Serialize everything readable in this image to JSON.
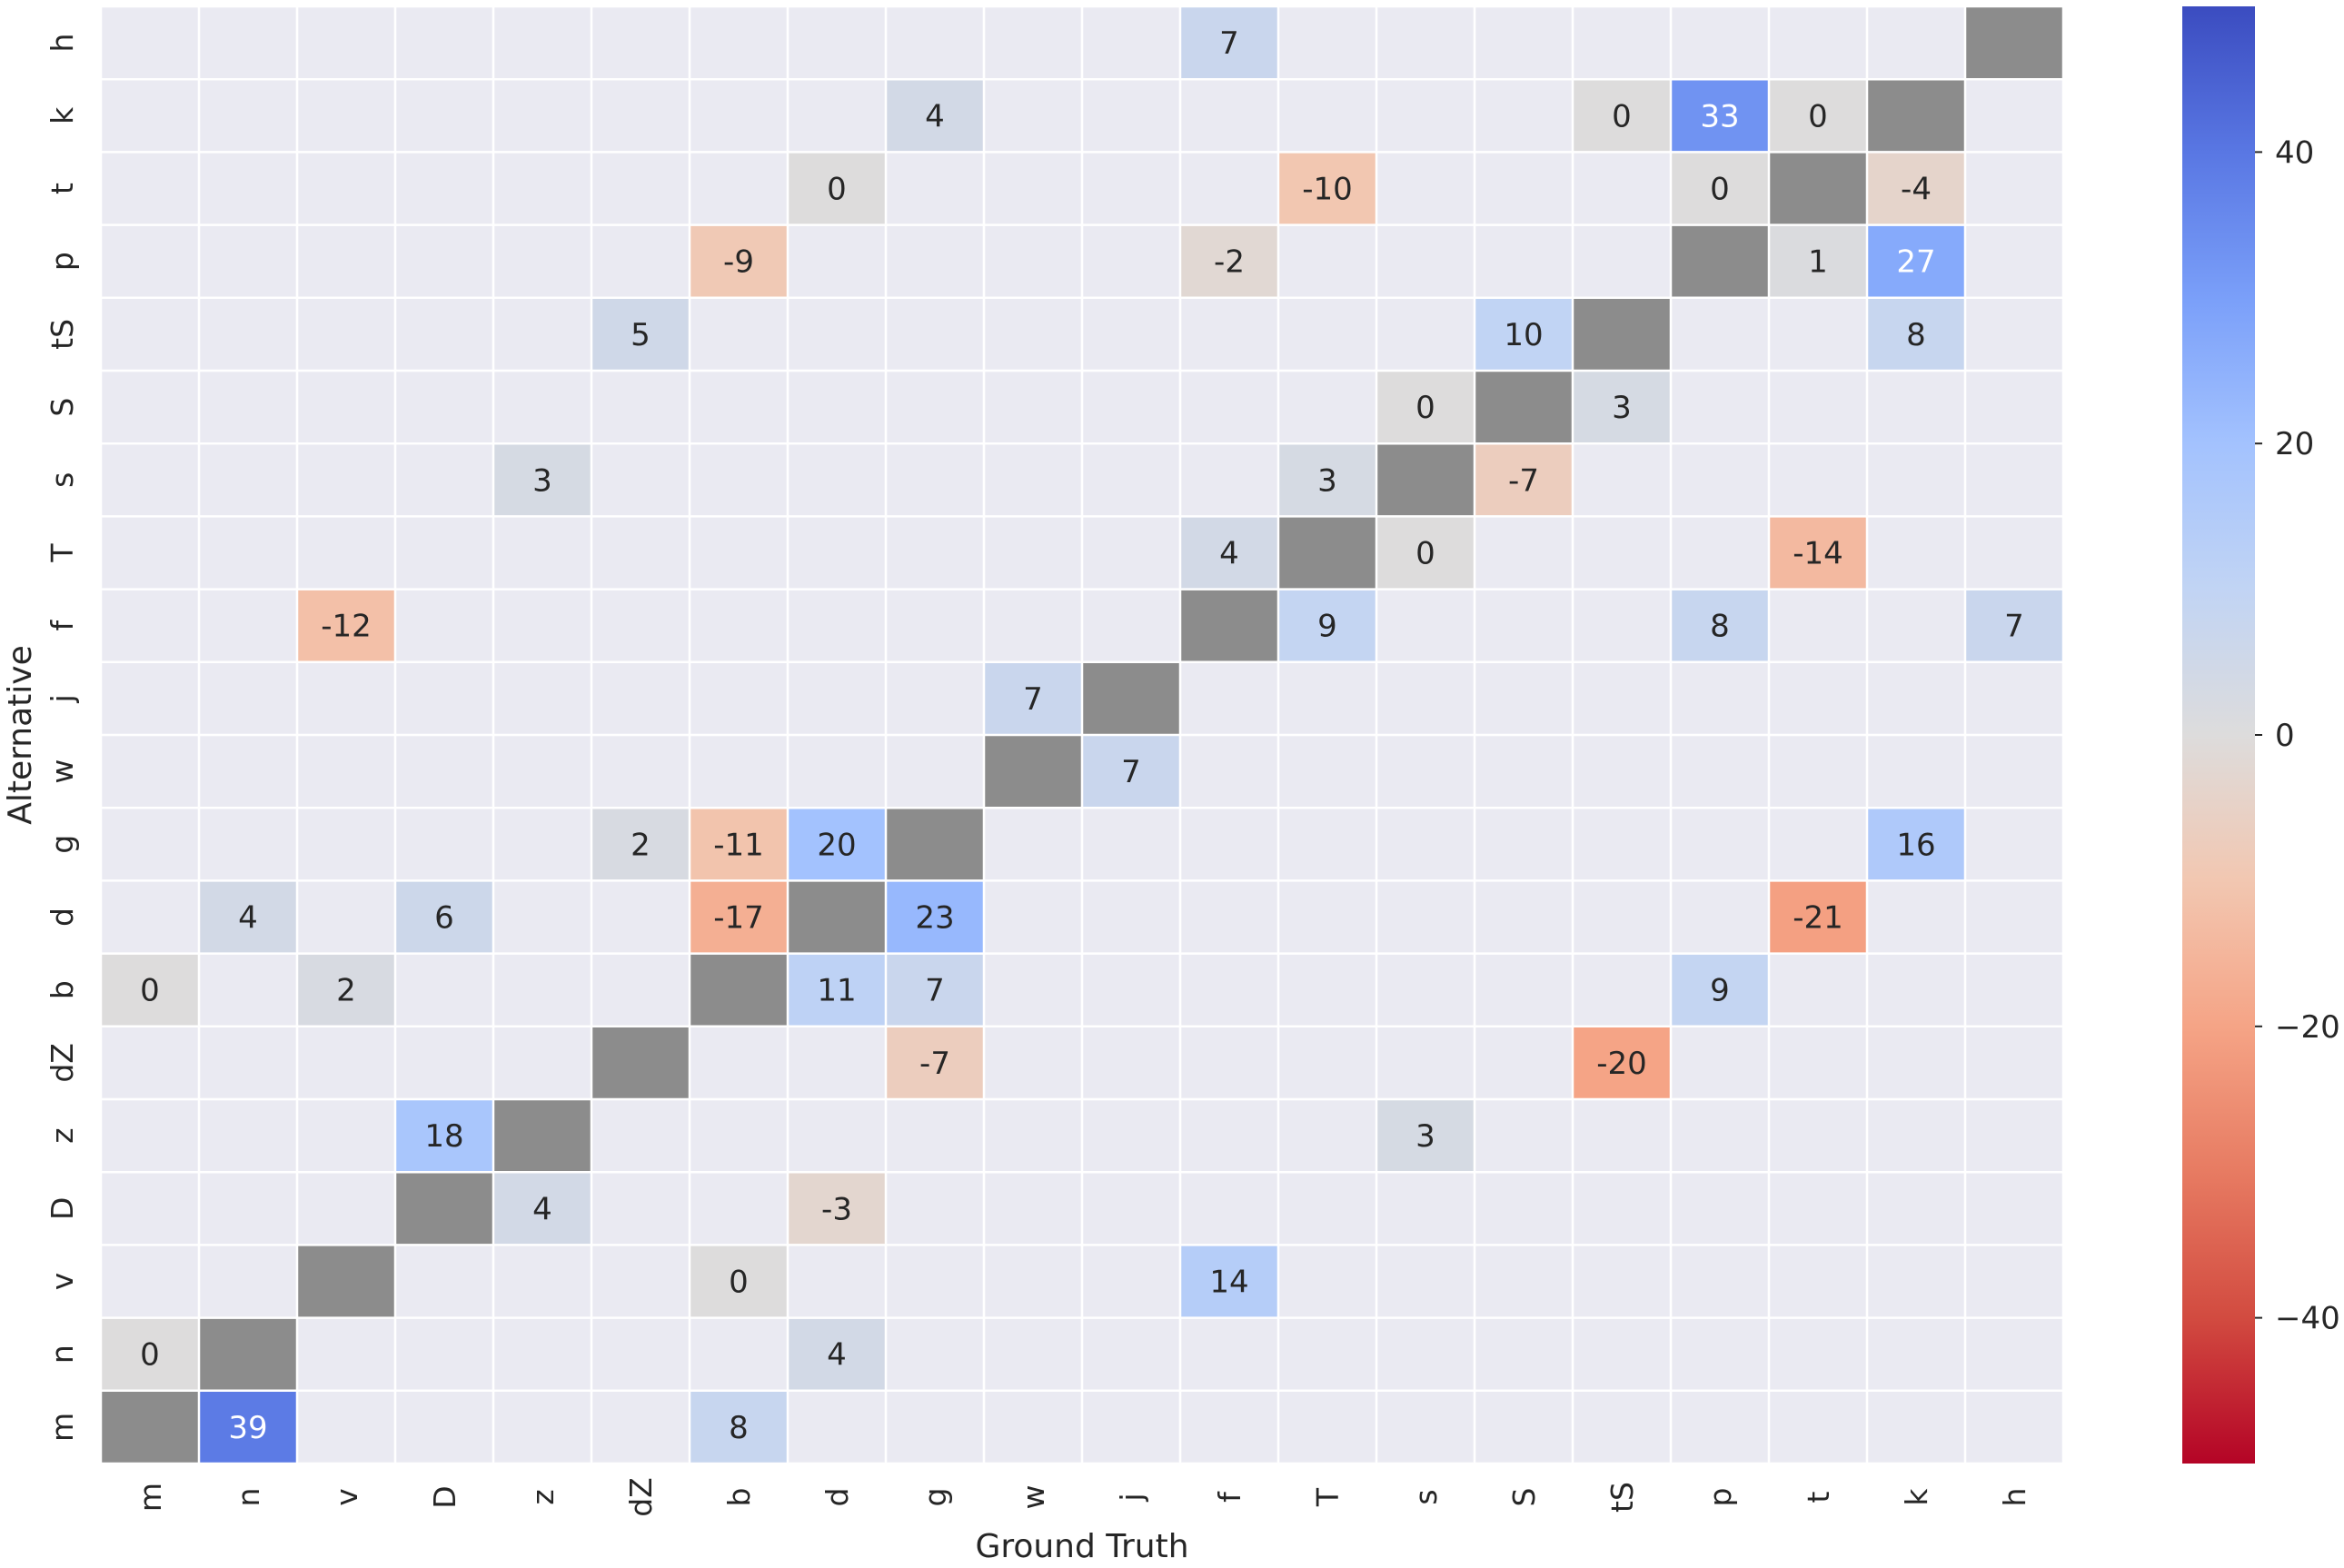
{
  "chart_data": {
    "type": "heatmap",
    "title": "",
    "xlabel": "Ground Truth",
    "ylabel": "Alternative",
    "x_categories": [
      "m",
      "n",
      "v",
      "D",
      "z",
      "dZ",
      "b",
      "d",
      "g",
      "w",
      "j",
      "f",
      "T",
      "s",
      "S",
      "tS",
      "p",
      "t",
      "k",
      "h"
    ],
    "y_categories_top_to_bottom": [
      "h",
      "k",
      "t",
      "p",
      "tS",
      "S",
      "s",
      "T",
      "f",
      "j",
      "w",
      "g",
      "d",
      "b",
      "dZ",
      "z",
      "D",
      "v",
      "n",
      "m"
    ],
    "cells": [
      {
        "x": "f",
        "y": "h",
        "value": 7
      },
      {
        "x": "g",
        "y": "k",
        "value": 4
      },
      {
        "x": "tS",
        "y": "k",
        "value": 0
      },
      {
        "x": "p",
        "y": "k",
        "value": 33
      },
      {
        "x": "t",
        "y": "k",
        "value": 0
      },
      {
        "x": "d",
        "y": "t",
        "value": 0
      },
      {
        "x": "T",
        "y": "t",
        "value": -10
      },
      {
        "x": "p",
        "y": "t",
        "value": 0
      },
      {
        "x": "k",
        "y": "t",
        "value": -4
      },
      {
        "x": "b",
        "y": "p",
        "value": -9
      },
      {
        "x": "f",
        "y": "p",
        "value": -2
      },
      {
        "x": "t",
        "y": "p",
        "value": 1
      },
      {
        "x": "k",
        "y": "p",
        "value": 27
      },
      {
        "x": "dZ",
        "y": "tS",
        "value": 5
      },
      {
        "x": "S",
        "y": "tS",
        "value": 10
      },
      {
        "x": "k",
        "y": "tS",
        "value": 8
      },
      {
        "x": "s",
        "y": "S",
        "value": 0
      },
      {
        "x": "tS",
        "y": "S",
        "value": 3
      },
      {
        "x": "z",
        "y": "s",
        "value": 3
      },
      {
        "x": "T",
        "y": "s",
        "value": 3
      },
      {
        "x": "S",
        "y": "s",
        "value": -7
      },
      {
        "x": "f",
        "y": "T",
        "value": 4
      },
      {
        "x": "s",
        "y": "T",
        "value": 0
      },
      {
        "x": "t",
        "y": "T",
        "value": -14
      },
      {
        "x": "v",
        "y": "f",
        "value": -12
      },
      {
        "x": "T",
        "y": "f",
        "value": 9
      },
      {
        "x": "p",
        "y": "f",
        "value": 8
      },
      {
        "x": "h",
        "y": "f",
        "value": 7
      },
      {
        "x": "w",
        "y": "j",
        "value": 7
      },
      {
        "x": "j",
        "y": "w",
        "value": 7
      },
      {
        "x": "dZ",
        "y": "g",
        "value": 2
      },
      {
        "x": "b",
        "y": "g",
        "value": -11
      },
      {
        "x": "d",
        "y": "g",
        "value": 20
      },
      {
        "x": "k",
        "y": "g",
        "value": 16
      },
      {
        "x": "n",
        "y": "d",
        "value": 4
      },
      {
        "x": "D",
        "y": "d",
        "value": 6
      },
      {
        "x": "b",
        "y": "d",
        "value": -17
      },
      {
        "x": "g",
        "y": "d",
        "value": 23
      },
      {
        "x": "t",
        "y": "d",
        "value": -21
      },
      {
        "x": "m",
        "y": "b",
        "value": 0
      },
      {
        "x": "v",
        "y": "b",
        "value": 2
      },
      {
        "x": "d",
        "y": "b",
        "value": 11
      },
      {
        "x": "g",
        "y": "b",
        "value": 7
      },
      {
        "x": "p",
        "y": "b",
        "value": 9
      },
      {
        "x": "g",
        "y": "dZ",
        "value": -7
      },
      {
        "x": "tS",
        "y": "dZ",
        "value": -20
      },
      {
        "x": "D",
        "y": "z",
        "value": 18
      },
      {
        "x": "s",
        "y": "z",
        "value": 3
      },
      {
        "x": "z",
        "y": "D",
        "value": 4
      },
      {
        "x": "d",
        "y": "D",
        "value": -3
      },
      {
        "x": "b",
        "y": "v",
        "value": 0
      },
      {
        "x": "f",
        "y": "v",
        "value": 14
      },
      {
        "x": "m",
        "y": "n",
        "value": 0
      },
      {
        "x": "d",
        "y": "n",
        "value": 4
      },
      {
        "x": "n",
        "y": "m",
        "value": 39
      },
      {
        "x": "b",
        "y": "m",
        "value": 8
      }
    ],
    "masked_diagonal": true,
    "colormap": "coolwarm_r",
    "vmin": -50,
    "vmax": 50,
    "colorbar_ticks": [
      40,
      20,
      0,
      -20,
      -40
    ],
    "colorbar_tick_labels": [
      "40",
      "20",
      "0",
      "−20",
      "−40"
    ],
    "colors": {
      "background": "#EAEAF2",
      "grid": "#ffffff",
      "masked": "#8c8c8c",
      "text_dark": "#262626",
      "text_light": "#ffffff"
    }
  }
}
